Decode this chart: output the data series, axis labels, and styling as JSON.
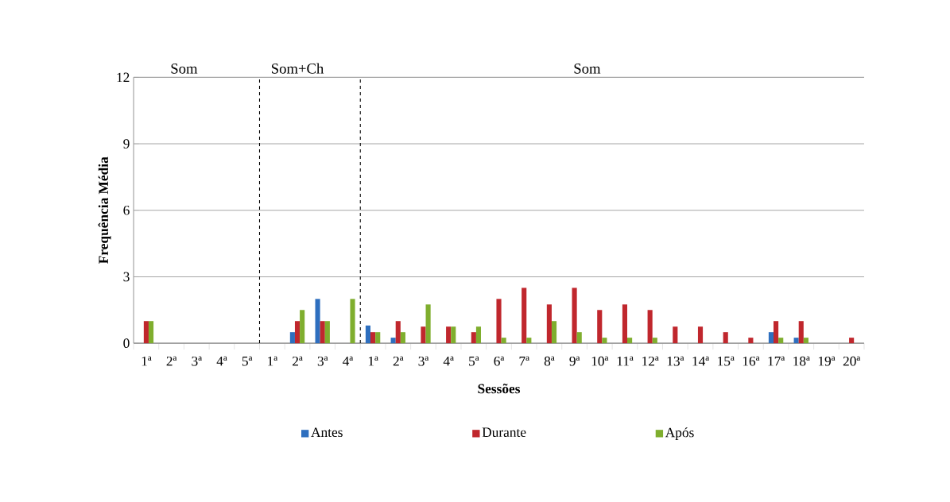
{
  "chart_data": {
    "type": "bar",
    "xlabel": "Sessões",
    "ylabel": "Frequência Média",
    "categories": [
      "1ª",
      "2ª",
      "3ª",
      "4ª",
      "5ª",
      "1ª",
      "2ª",
      "3ª",
      "4ª",
      "1ª",
      "2ª",
      "3ª",
      "4ª",
      "5ª",
      "6ª",
      "7ª",
      "8ª",
      "9ª",
      "10ª",
      "11ª",
      "12ª",
      "13ª",
      "14ª",
      "15ª",
      "16ª",
      "17ª",
      "18ª",
      "19ª",
      "20ª"
    ],
    "series": [
      {
        "name": "Antes",
        "color": "#2e6fbf",
        "values": [
          0,
          0,
          0,
          0,
          0,
          0,
          0.5,
          2,
          0,
          0.8,
          0.25,
          0,
          0,
          0,
          0,
          0,
          0,
          0,
          0,
          0,
          0,
          0,
          0,
          0,
          0,
          0.5,
          0.25,
          0,
          0
        ]
      },
      {
        "name": "Durante",
        "color": "#c0272d",
        "values": [
          1,
          0,
          0,
          0,
          0,
          0,
          1,
          1,
          0,
          0.5,
          1,
          0.75,
          0.75,
          0.5,
          2,
          2.5,
          1.75,
          2.5,
          1.5,
          1.75,
          1.5,
          0.75,
          0.75,
          0.5,
          0.25,
          1,
          1,
          0,
          0.25
        ]
      },
      {
        "name": "Após",
        "color": "#7fae2e",
        "values": [
          1,
          0,
          0,
          0,
          0,
          0,
          1.5,
          1,
          2,
          0.5,
          0.5,
          1.75,
          0.75,
          0.75,
          0.25,
          0.25,
          1,
          0.5,
          0.25,
          0.25,
          0.25,
          0,
          0,
          0,
          0,
          0.25,
          0.25,
          0,
          0
        ]
      }
    ],
    "ylim": [
      0,
      12
    ],
    "yticks": [
      0,
      3,
      6,
      9,
      12
    ],
    "grid": "y",
    "legend": "bottom",
    "annotations": [
      "Som",
      "Som+Ch",
      "Som"
    ]
  }
}
